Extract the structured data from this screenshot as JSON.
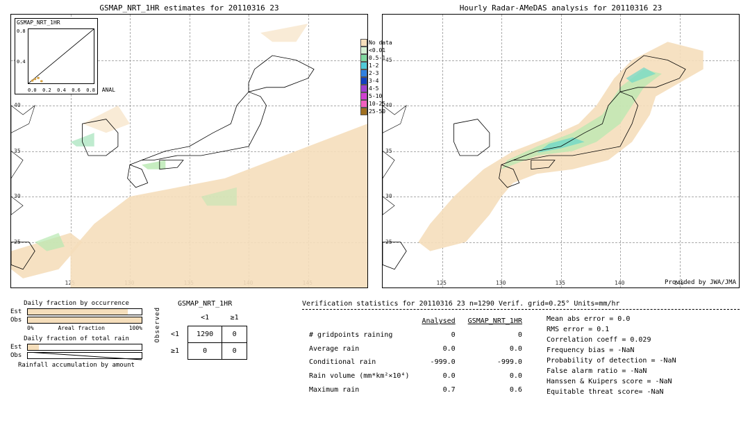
{
  "maps": {
    "left": {
      "title": "GSMAP_NRT_1HR estimates for 20110316 23",
      "inset_label": "GSMAP_NRT_1HR",
      "inset": {
        "xlim": [
          0,
          0.8
        ],
        "ylim": [
          0,
          0.8
        ],
        "ticks": [
          "0.0",
          "0.2",
          "0.4",
          "0.6",
          "0.8"
        ],
        "axis_label": "ANAL"
      },
      "background_color": "#ffffff",
      "nodata_fill": "#f5debb",
      "precip_light": "#b8e8b0",
      "precip_med": "#7fd89f",
      "lon_range": [
        120,
        150
      ],
      "lat_range": [
        20,
        50
      ],
      "lon_ticks": [
        125,
        130,
        135,
        140,
        145
      ],
      "lat_ticks": [
        25,
        30,
        35,
        40,
        45
      ]
    },
    "right": {
      "title": "Hourly Radar-AMeDAS analysis for 20110316 23",
      "attribution": "Provided by JWA/JMA",
      "background_color": "#ffffff",
      "nodata_fill": "#f5debb",
      "precip_light": "#b8e8b0",
      "precip_med": "#6fd8c8",
      "lon_range": [
        120,
        150
      ],
      "lat_range": [
        20,
        50
      ],
      "lon_ticks": [
        125,
        130,
        135,
        140,
        145
      ],
      "lat_ticks": [
        25,
        30,
        35,
        40,
        45
      ]
    },
    "legend": {
      "items": [
        {
          "label": "No data",
          "color": "#f5debb"
        },
        {
          "label": "<0.01",
          "color": "#d4f0d4"
        },
        {
          "label": "0.5-1",
          "color": "#7fd89f"
        },
        {
          "label": "1-2",
          "color": "#4fc8d8"
        },
        {
          "label": "2-3",
          "color": "#3080e0"
        },
        {
          "label": "3-4",
          "color": "#1040c0"
        },
        {
          "label": "4-5",
          "color": "#a040d0"
        },
        {
          "label": "5-10",
          "color": "#d040d0"
        },
        {
          "label": "10-25",
          "color": "#f060c0"
        },
        {
          "label": "25-50",
          "color": "#a07020"
        }
      ]
    }
  },
  "bars": {
    "occurrence": {
      "title": "Daily fraction by occurrence",
      "est_pct": 88,
      "obs_pct": 100,
      "axis_label": "Areal fraction",
      "fill_color": "#f5debb"
    },
    "total_rain": {
      "title": "Daily fraction of total rain",
      "est_pct": 10,
      "obs_pct": 0,
      "fill_color": "#f5debb"
    },
    "accum_title": "Rainfall accumulation by amount",
    "row_labels": {
      "est": "Est",
      "obs": "Obs"
    },
    "axis_0": "0%",
    "axis_100": "100%"
  },
  "contingency": {
    "title": "GSMAP_NRT_1HR",
    "side_label": "Observed",
    "col_headers": [
      "<1",
      "≥1"
    ],
    "row_headers": [
      "<1",
      "≥1"
    ],
    "cells": [
      [
        1290,
        0
      ],
      [
        0,
        0
      ]
    ]
  },
  "stats": {
    "header": "Verification statistics for 20110316 23  n=1290  Verif. grid=0.25°  Units=mm/hr",
    "table": {
      "col_headers": [
        "Analysed",
        "GSMAP_NRT_1HR"
      ],
      "rows": [
        {
          "label": "# gridpoints raining",
          "vals": [
            "0",
            "0"
          ]
        },
        {
          "label": "Average rain",
          "vals": [
            "0.0",
            "0.0"
          ]
        },
        {
          "label": "Conditional rain",
          "vals": [
            "-999.0",
            "-999.0"
          ]
        },
        {
          "label": "Rain volume (mm*km²×10⁴)",
          "vals": [
            "0.0",
            "0.0"
          ]
        },
        {
          "label": "Maximum rain",
          "vals": [
            "0.7",
            "0.6"
          ]
        }
      ]
    },
    "metrics": [
      "Mean abs error = 0.0",
      "RMS error = 0.1",
      "Correlation coeff = 0.029",
      "Frequency bias = -NaN",
      "Probability of detection = -NaN",
      "False alarm ratio = -NaN",
      "Hanssen & Kuipers score = -NaN",
      "Equitable threat score= -NaN"
    ]
  }
}
